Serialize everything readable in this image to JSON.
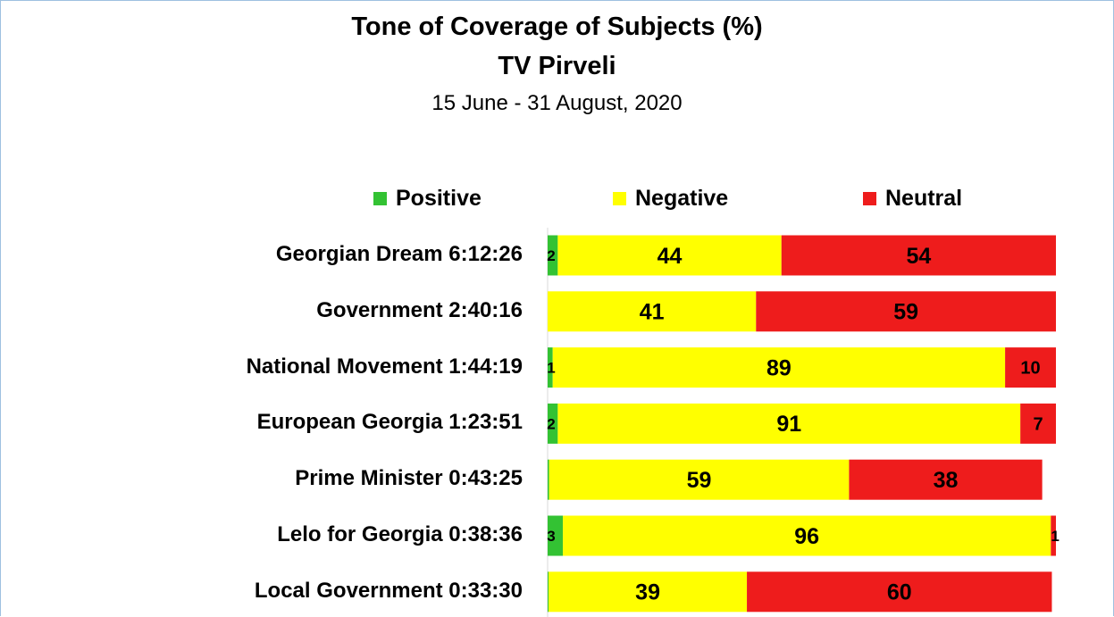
{
  "chart_data": {
    "type": "bar",
    "orientation": "horizontal",
    "stacked": true,
    "title": "Tone of Coverage of Subjects (%)",
    "subtitle": "TV Pirveli",
    "date_range": "15 June - 31 August, 2020",
    "legend": [
      "Positive",
      "Negative",
      "Neutral"
    ],
    "legend_position": "top",
    "colors": {
      "Positive": "#33c233",
      "Negative": "#ffff00",
      "Neutral": "#ee1c1c"
    },
    "categories": [
      "Georgian Dream 6:12:26",
      "Government 2:40:16",
      "National Movement 1:44:19",
      "European Georgia 1:23:51",
      "Prime Minister 0:43:25",
      "Lelo for Georgia 0:38:36",
      "Local Government 0:33:30"
    ],
    "series": [
      {
        "name": "Positive",
        "values": [
          2,
          0,
          1,
          2,
          0.3,
          3,
          0.2
        ],
        "labels": [
          "2",
          "",
          "1",
          "2",
          "",
          "3",
          ""
        ]
      },
      {
        "name": "Negative",
        "values": [
          44,
          41,
          89,
          91,
          59,
          96,
          39
        ],
        "labels": [
          "44",
          "41",
          "89",
          "91",
          "59",
          "96",
          "39"
        ]
      },
      {
        "name": "Neutral",
        "values": [
          54,
          59,
          10,
          7,
          38,
          1,
          60
        ],
        "labels": [
          "54",
          "59",
          "10",
          "7",
          "38",
          "1",
          "60"
        ]
      }
    ],
    "grid": false
  }
}
